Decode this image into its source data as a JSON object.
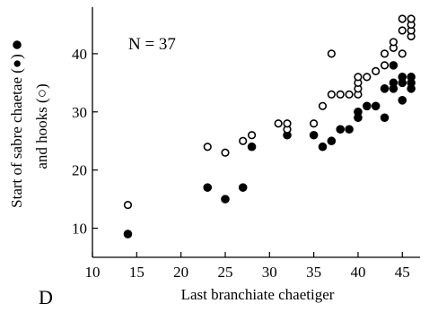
{
  "chart_data": {
    "type": "scatter",
    "panel_label": "D",
    "annotation": "N = 37",
    "xlabel": "Last branchiate chaetiger",
    "ylabel_line1": "Start of sabre chaetae (●)",
    "ylabel_line2": "and hooks (○)",
    "xlim": [
      10,
      47
    ],
    "ylim": [
      5,
      48
    ],
    "xticks": [
      10,
      15,
      20,
      25,
      30,
      35,
      40,
      45
    ],
    "yticks": [
      10,
      20,
      30,
      40
    ],
    "grid": false,
    "series": [
      {
        "marker": "filled",
        "points": [
          [
            14,
            9
          ],
          [
            23,
            17
          ],
          [
            25,
            15
          ],
          [
            27,
            17
          ],
          [
            28,
            24
          ],
          [
            32,
            26
          ],
          [
            35,
            26
          ],
          [
            36,
            24
          ],
          [
            37,
            25
          ],
          [
            38,
            27
          ],
          [
            39,
            27
          ],
          [
            40,
            29
          ],
          [
            40,
            30
          ],
          [
            41,
            31
          ],
          [
            42,
            31
          ],
          [
            43,
            29
          ],
          [
            43,
            34
          ],
          [
            44,
            34
          ],
          [
            44,
            35
          ],
          [
            44,
            38
          ],
          [
            45,
            32
          ],
          [
            45,
            35
          ],
          [
            45,
            36
          ],
          [
            46,
            34
          ],
          [
            46,
            35
          ],
          [
            46,
            36
          ]
        ]
      },
      {
        "marker": "open",
        "points": [
          [
            14,
            14
          ],
          [
            23,
            24
          ],
          [
            25,
            23
          ],
          [
            27,
            25
          ],
          [
            28,
            26
          ],
          [
            31,
            28
          ],
          [
            32,
            27
          ],
          [
            32,
            28
          ],
          [
            35,
            28
          ],
          [
            36,
            31
          ],
          [
            37,
            33
          ],
          [
            37,
            40
          ],
          [
            38,
            33
          ],
          [
            39,
            33
          ],
          [
            40,
            33
          ],
          [
            40,
            34
          ],
          [
            40,
            35
          ],
          [
            40,
            36
          ],
          [
            41,
            36
          ],
          [
            42,
            37
          ],
          [
            43,
            38
          ],
          [
            43,
            40
          ],
          [
            44,
            41
          ],
          [
            44,
            42
          ],
          [
            45,
            40
          ],
          [
            45,
            44
          ],
          [
            45,
            46
          ],
          [
            46,
            43
          ],
          [
            46,
            44
          ],
          [
            46,
            45
          ],
          [
            46,
            46
          ]
        ]
      }
    ]
  }
}
